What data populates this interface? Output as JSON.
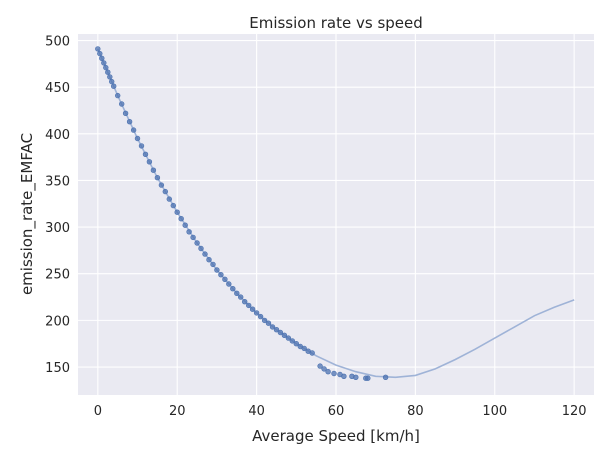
{
  "chart_data": {
    "type": "scatter",
    "title": "Emission rate vs speed",
    "xlabel": "Average Speed [km/h]",
    "ylabel": "emission_rate_EMFAC",
    "xlim": [
      -5,
      125
    ],
    "ylim": [
      120,
      507
    ],
    "x_ticks": [
      0,
      20,
      40,
      60,
      80,
      100,
      120
    ],
    "y_ticks": [
      150,
      200,
      250,
      300,
      350,
      400,
      450,
      500
    ],
    "grid": true,
    "legend": "none",
    "colors": {
      "background": "#eaeaf2",
      "grid": "#ffffff",
      "points": "#4c72b0",
      "fit_line": "#9fb3d7"
    },
    "fit_curve": {
      "x": [
        0,
        5,
        10,
        15,
        20,
        25,
        30,
        35,
        40,
        45,
        50,
        55,
        60,
        65,
        70,
        75,
        80,
        85,
        90,
        95,
        100,
        105,
        110,
        115,
        120
      ],
      "y": [
        491,
        441,
        395,
        353,
        316,
        283,
        254,
        229,
        208,
        190,
        175,
        162,
        152,
        145,
        140,
        139,
        141,
        148,
        158,
        169,
        181,
        193,
        205,
        214,
        222
      ]
    },
    "points": {
      "x": [
        0,
        0.5,
        1,
        1.5,
        2,
        2.5,
        3,
        3.5,
        4,
        5,
        6,
        7,
        8,
        9,
        10,
        11,
        12,
        13,
        14,
        15,
        16,
        17,
        18,
        19,
        20,
        21,
        22,
        23,
        24,
        25,
        26,
        27,
        28,
        29,
        30,
        31,
        32,
        33,
        34,
        35,
        36,
        37,
        38,
        39,
        40,
        41,
        42,
        43,
        44,
        45,
        46,
        47,
        48,
        49,
        50,
        51,
        52,
        53,
        54,
        56,
        57,
        58,
        59.5,
        61,
        62,
        64,
        65,
        67.5,
        68,
        72.5
      ],
      "y": [
        491,
        486,
        481,
        476,
        471,
        466,
        461,
        456,
        451,
        441,
        432,
        422,
        413,
        404,
        395,
        387,
        378,
        370,
        361,
        353,
        345,
        338,
        330,
        323,
        316,
        309,
        302,
        295,
        289,
        283,
        277,
        271,
        265,
        260,
        254,
        249,
        244,
        239,
        234,
        229,
        225,
        220,
        216,
        212,
        208,
        204,
        200,
        197,
        193,
        190,
        187,
        184,
        181,
        178,
        175,
        172,
        170,
        167,
        165,
        151,
        148,
        145,
        143,
        142,
        140,
        140,
        139,
        138,
        138,
        139
      ]
    }
  }
}
